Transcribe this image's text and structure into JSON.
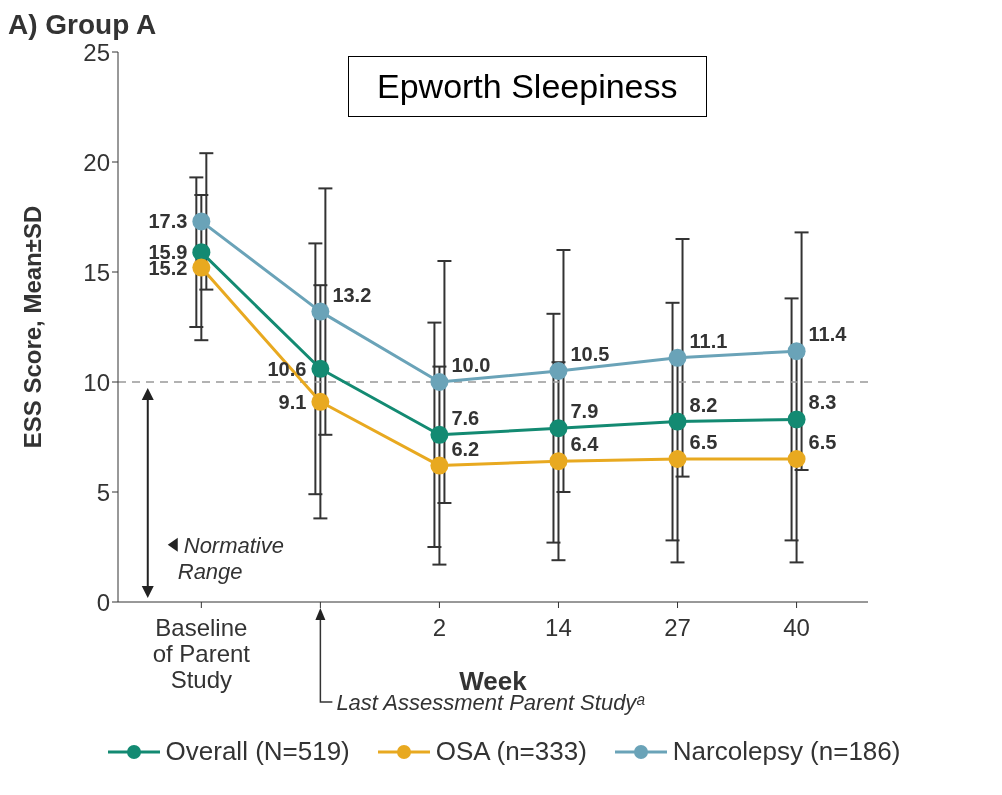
{
  "chart_data": {
    "type": "line",
    "title": "A) Group A",
    "subtitle": "Epworth Sleepiness",
    "xlabel": "Week",
    "ylabel": "ESS Score, Mean±SD",
    "categories": [
      "Baseline of Parent Study",
      null,
      "2",
      "14",
      "27",
      "40"
    ],
    "series": [
      {
        "name": "Overall (N=519)",
        "color": "#138a72",
        "values": [
          15.9,
          10.6,
          7.6,
          7.9,
          8.2,
          8.3
        ],
        "value_labels": [
          "15.9",
          "10.6",
          "7.6",
          "7.9",
          "8.2",
          "8.3"
        ],
        "errors": [
          3.4,
          5.7,
          5.1,
          5.2,
          5.4,
          5.5
        ]
      },
      {
        "name": "OSA (n=333)",
        "color": "#e8a920",
        "values": [
          15.2,
          9.1,
          6.2,
          6.4,
          6.5,
          6.5
        ],
        "value_labels": [
          "15.2",
          "9.1",
          "6.2",
          "6.4",
          "6.5",
          "6.5"
        ],
        "errors": [
          3.3,
          5.3,
          4.5,
          4.5,
          4.7,
          4.7
        ]
      },
      {
        "name": "Narcolepsy (n=186)",
        "color": "#6aa3b8",
        "values": [
          17.3,
          13.2,
          10.0,
          10.5,
          11.1,
          11.4
        ],
        "value_labels": [
          "17.3",
          "13.2",
          "10.0",
          "10.5",
          "11.1",
          "11.4"
        ],
        "errors": [
          3.1,
          5.6,
          5.5,
          5.5,
          5.4,
          5.4
        ]
      }
    ],
    "ylim": [
      0,
      25
    ],
    "yticks": [
      0,
      5,
      10,
      15,
      20,
      25
    ],
    "ref_lines": [
      {
        "axis": "y",
        "value": 10,
        "color": "#999999",
        "line_style": "dashed"
      }
    ],
    "annotations": [
      "Normative Range",
      "Last Assessment Parent Studyᵃ"
    ],
    "marker": "circle",
    "line_style": "solid",
    "grid": false,
    "legend": "bottom"
  }
}
